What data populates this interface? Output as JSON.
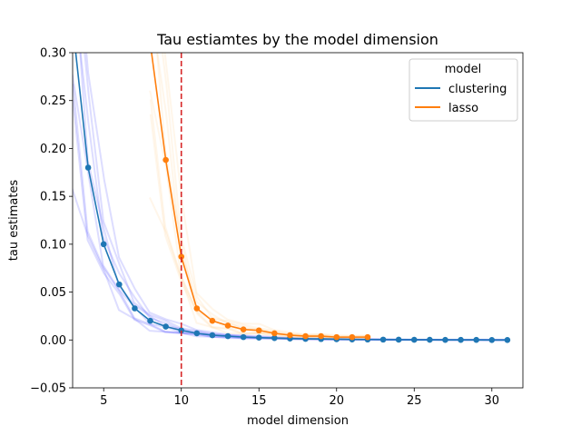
{
  "chart_data": {
    "type": "line",
    "title": "Tau estiamtes by the model dimension",
    "xlabel": "model dimension",
    "ylabel": "tau estimates",
    "xlim": [
      3,
      32
    ],
    "ylim": [
      -0.05,
      0.3
    ],
    "xticks": [
      5,
      10,
      15,
      20,
      25,
      30
    ],
    "yticks": [
      -0.05,
      0.0,
      0.05,
      0.1,
      0.15,
      0.2,
      0.25,
      0.3
    ],
    "ytick_labels": [
      "−0.05",
      "0.00",
      "0.05",
      "0.10",
      "0.15",
      "0.20",
      "0.25",
      "0.30"
    ],
    "grid": false,
    "legend": {
      "title": "model",
      "placement": "top-right"
    },
    "vline": {
      "x": 10,
      "color": "#d62728",
      "style": "dashed"
    },
    "series": [
      {
        "name": "clustering",
        "color": "#1f77b4",
        "band_color": "#4444ff",
        "x": [
          3,
          4,
          5,
          6,
          7,
          8,
          9,
          10,
          11,
          12,
          13,
          14,
          15,
          16,
          17,
          18,
          19,
          20,
          21,
          22,
          23,
          24,
          25,
          26,
          27,
          28,
          29,
          30,
          31
        ],
        "y": [
          0.33,
          0.18,
          0.1,
          0.058,
          0.033,
          0.02,
          0.014,
          0.01,
          0.007,
          0.005,
          0.004,
          0.003,
          0.0025,
          0.002,
          0.0015,
          0.0012,
          0.001,
          0.0008,
          0.0006,
          0.0005,
          0.0004,
          0.0003,
          0.0002,
          0.0002,
          0.0001,
          0.0001,
          0.0001,
          0.0,
          0.0
        ]
      },
      {
        "name": "lasso",
        "color": "#ff7f0e",
        "band_color": "#ffcc88",
        "x": [
          8,
          9,
          10,
          11,
          12,
          13,
          14,
          15,
          16,
          17,
          18,
          19,
          20,
          21,
          22
        ],
        "y": [
          0.31,
          0.188,
          0.087,
          0.033,
          0.02,
          0.015,
          0.011,
          0.01,
          0.007,
          0.005,
          0.004,
          0.004,
          0.003,
          0.003,
          0.003
        ]
      }
    ]
  }
}
